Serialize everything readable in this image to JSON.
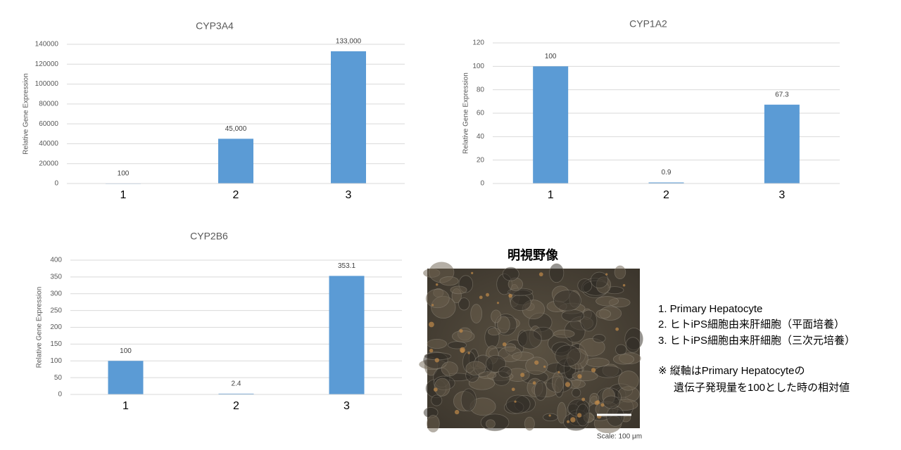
{
  "chart_data": [
    {
      "type": "bar",
      "title": "CYP3A4",
      "y_label": "Relative Gene Expression",
      "categories": [
        "1",
        "2",
        "3"
      ],
      "values": [
        100,
        45000,
        133000
      ],
      "value_labels": [
        "100",
        "45,000",
        "133,000"
      ],
      "color": "#5b9bd5",
      "ylim": [
        0,
        140000
      ],
      "yticks": [
        0,
        20000,
        40000,
        60000,
        80000,
        100000,
        120000,
        140000
      ],
      "grid": true
    },
    {
      "type": "bar",
      "title": "CYP1A2",
      "y_label": "Relative Gene Expression",
      "categories": [
        "1",
        "2",
        "3"
      ],
      "values": [
        100,
        0.9,
        67.3
      ],
      "color": "#5b9bd5",
      "ylim": [
        0,
        120
      ],
      "yticks": [
        0,
        20,
        40,
        60,
        80,
        100,
        120
      ],
      "grid": true
    },
    {
      "type": "bar",
      "title": "CYP2B6",
      "y_label": "Relative Gene Expression",
      "categories": [
        "1",
        "2",
        "3"
      ],
      "values": [
        100,
        2.4,
        353.1
      ],
      "color": "#5b9bd5",
      "ylim": [
        0,
        400
      ],
      "yticks": [
        0,
        50,
        100,
        150,
        200,
        250,
        300,
        350,
        400
      ],
      "grid": true
    }
  ],
  "image": {
    "title": "明視野像",
    "scale": "Scale: 100 μm"
  },
  "notes": {
    "items": [
      "1.  Primary Hepatocyte",
      "2. ヒトiPS細胞由来肝細胞（平面培養）",
      "3. ヒトiPS細胞由来肝細胞（三次元培養）"
    ],
    "remark": [
      "※ 縦軸はPrimary Hepatocyteの",
      "遺伝子発現量を100とした時の相対値"
    ]
  }
}
